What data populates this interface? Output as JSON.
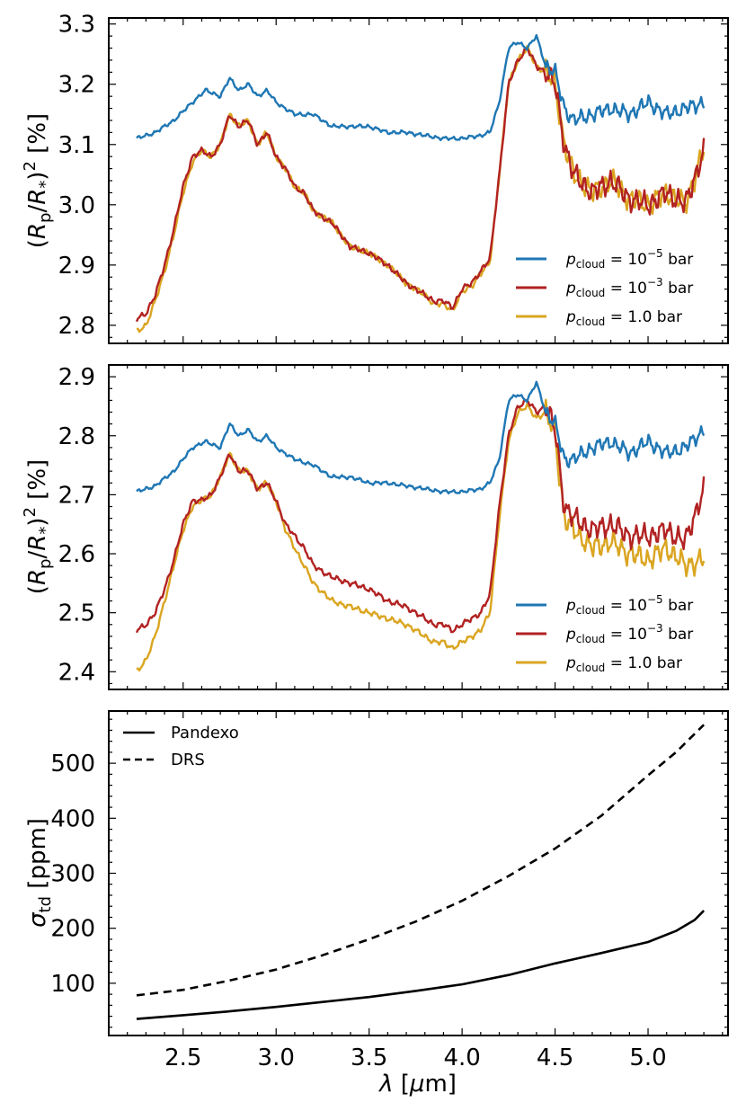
{
  "colors": {
    "blue": "#1f77b4",
    "red": "#b22222",
    "gold": "#daa520",
    "black": "#000000"
  },
  "chart_data": [
    {
      "type": "line",
      "panel": "top",
      "ylabel": "(Rp/R*)² [%]",
      "ylim": [
        2.77,
        3.31
      ],
      "yticks": [
        "2.8",
        "2.9",
        "3.0",
        "3.1",
        "3.2",
        "3.3"
      ],
      "xlim": [
        2.1,
        5.43
      ],
      "legend_position": "lower right",
      "legend": [
        {
          "prefix": "p",
          "sub": "cloud",
          "eq": " = 10",
          "sup": "−5",
          "unit": " bar",
          "color": "#1f77b4"
        },
        {
          "prefix": "p",
          "sub": "cloud",
          "eq": " = 10",
          "sup": "−3",
          "unit": " bar",
          "color": "#b22222"
        },
        {
          "prefix": "p",
          "sub": "cloud",
          "eq": " = 1.0 bar",
          "sup": "",
          "unit": "",
          "color": "#daa520"
        }
      ],
      "series": [
        {
          "name": "p_cloud = 1e-5 bar",
          "color": "#1f77b4",
          "x": [
            2.25,
            2.35,
            2.45,
            2.55,
            2.62,
            2.7,
            2.75,
            2.8,
            2.85,
            2.9,
            2.95,
            3.0,
            3.1,
            3.2,
            3.3,
            3.4,
            3.5,
            3.6,
            3.7,
            3.8,
            3.9,
            4.0,
            4.1,
            4.15,
            4.2,
            4.25,
            4.3,
            4.35,
            4.4,
            4.45,
            4.5,
            4.55,
            4.6,
            4.7,
            4.8,
            4.9,
            5.0,
            5.1,
            5.2,
            5.3
          ],
          "y": [
            3.11,
            3.12,
            3.14,
            3.17,
            3.19,
            3.18,
            3.21,
            3.19,
            3.2,
            3.18,
            3.19,
            3.17,
            3.15,
            3.15,
            3.13,
            3.13,
            3.13,
            3.12,
            3.12,
            3.115,
            3.11,
            3.11,
            3.115,
            3.12,
            3.17,
            3.26,
            3.27,
            3.26,
            3.28,
            3.23,
            3.22,
            3.16,
            3.14,
            3.15,
            3.16,
            3.15,
            3.17,
            3.15,
            3.16,
            3.17
          ]
        },
        {
          "name": "p_cloud = 1e-3 bar",
          "color": "#b22222",
          "x": [
            2.25,
            2.3,
            2.35,
            2.4,
            2.45,
            2.5,
            2.55,
            2.6,
            2.65,
            2.7,
            2.75,
            2.8,
            2.85,
            2.9,
            2.95,
            3.0,
            3.05,
            3.1,
            3.15,
            3.2,
            3.3,
            3.4,
            3.5,
            3.6,
            3.7,
            3.8,
            3.85,
            3.9,
            3.95,
            4.0,
            4.05,
            4.1,
            4.15,
            4.2,
            4.25,
            4.3,
            4.35,
            4.4,
            4.45,
            4.5,
            4.55,
            4.6,
            4.7,
            4.8,
            4.9,
            5.0,
            5.1,
            5.2,
            5.3
          ],
          "y": [
            2.81,
            2.82,
            2.85,
            2.9,
            2.96,
            3.03,
            3.08,
            3.09,
            3.08,
            3.1,
            3.15,
            3.13,
            3.14,
            3.1,
            3.12,
            3.08,
            3.06,
            3.03,
            3.02,
            2.99,
            2.97,
            2.93,
            2.92,
            2.9,
            2.87,
            2.85,
            2.84,
            2.84,
            2.83,
            2.86,
            2.87,
            2.89,
            2.91,
            3.05,
            3.2,
            3.24,
            3.26,
            3.23,
            3.22,
            3.2,
            3.1,
            3.05,
            3.02,
            3.04,
            3.01,
            3.0,
            3.02,
            3.0,
            3.09
          ]
        },
        {
          "name": "p_cloud = 1.0 bar",
          "color": "#daa520",
          "x": [
            2.25,
            2.3,
            2.35,
            2.4,
            2.45,
            2.5,
            2.55,
            2.6,
            2.65,
            2.7,
            2.75,
            2.8,
            2.85,
            2.9,
            2.95,
            3.0,
            3.05,
            3.1,
            3.15,
            3.2,
            3.3,
            3.4,
            3.5,
            3.6,
            3.7,
            3.8,
            3.85,
            3.9,
            3.95,
            4.0,
            4.05,
            4.1,
            4.15,
            4.2,
            4.25,
            4.3,
            4.35,
            4.4,
            4.45,
            4.5,
            4.55,
            4.6,
            4.7,
            4.8,
            4.9,
            5.0,
            5.1,
            5.2,
            5.3
          ],
          "y": [
            2.79,
            2.8,
            2.84,
            2.89,
            2.95,
            3.02,
            3.07,
            3.09,
            3.08,
            3.1,
            3.15,
            3.13,
            3.14,
            3.1,
            3.12,
            3.08,
            3.06,
            3.03,
            3.02,
            2.99,
            2.97,
            2.93,
            2.92,
            2.9,
            2.87,
            2.85,
            2.835,
            2.835,
            2.825,
            2.855,
            2.865,
            2.885,
            2.905,
            3.05,
            3.2,
            3.24,
            3.26,
            3.23,
            3.22,
            3.2,
            3.1,
            3.05,
            3.02,
            3.04,
            3.01,
            3.0,
            3.02,
            3.0,
            3.09
          ]
        }
      ]
    },
    {
      "type": "line",
      "panel": "middle",
      "ylabel": "(Rp/R*)² [%]",
      "ylim": [
        2.37,
        2.92
      ],
      "yticks": [
        "2.4",
        "2.5",
        "2.6",
        "2.7",
        "2.8",
        "2.9"
      ],
      "xlim": [
        2.1,
        5.43
      ],
      "legend_position": "lower right",
      "legend": [
        {
          "prefix": "p",
          "sub": "cloud",
          "eq": " = 10",
          "sup": "−5",
          "unit": " bar",
          "color": "#1f77b4"
        },
        {
          "prefix": "p",
          "sub": "cloud",
          "eq": " = 10",
          "sup": "−3",
          "unit": " bar",
          "color": "#b22222"
        },
        {
          "prefix": "p",
          "sub": "cloud",
          "eq": " = 1.0 bar",
          "sup": "",
          "unit": "",
          "color": "#daa520"
        }
      ],
      "series": [
        {
          "name": "p_cloud = 1e-5 bar",
          "color": "#1f77b4",
          "x": [
            2.25,
            2.35,
            2.45,
            2.55,
            2.62,
            2.7,
            2.75,
            2.8,
            2.85,
            2.9,
            2.95,
            3.0,
            3.1,
            3.2,
            3.3,
            3.4,
            3.5,
            3.6,
            3.7,
            3.8,
            3.9,
            4.0,
            4.1,
            4.15,
            4.2,
            4.25,
            4.3,
            4.35,
            4.4,
            4.45,
            4.5,
            4.55,
            4.6,
            4.7,
            4.8,
            4.9,
            5.0,
            5.1,
            5.2,
            5.3
          ],
          "y": [
            2.705,
            2.715,
            2.74,
            2.78,
            2.79,
            2.78,
            2.82,
            2.8,
            2.81,
            2.79,
            2.8,
            2.78,
            2.76,
            2.75,
            2.73,
            2.73,
            2.72,
            2.72,
            2.715,
            2.71,
            2.705,
            2.705,
            2.71,
            2.72,
            2.76,
            2.86,
            2.87,
            2.86,
            2.89,
            2.84,
            2.82,
            2.76,
            2.76,
            2.78,
            2.79,
            2.77,
            2.79,
            2.77,
            2.78,
            2.81
          ]
        },
        {
          "name": "p_cloud = 1e-3 bar",
          "color": "#b22222",
          "x": [
            2.25,
            2.3,
            2.35,
            2.4,
            2.45,
            2.5,
            2.55,
            2.6,
            2.65,
            2.7,
            2.75,
            2.8,
            2.85,
            2.9,
            2.95,
            3.0,
            3.05,
            3.1,
            3.15,
            3.2,
            3.3,
            3.4,
            3.5,
            3.6,
            3.7,
            3.8,
            3.85,
            3.9,
            3.95,
            4.0,
            4.05,
            4.1,
            4.15,
            4.2,
            4.25,
            4.3,
            4.35,
            4.4,
            4.45,
            4.5,
            4.55,
            4.6,
            4.7,
            4.8,
            4.9,
            5.0,
            5.1,
            5.2,
            5.3
          ],
          "y": [
            2.47,
            2.48,
            2.5,
            2.54,
            2.59,
            2.65,
            2.69,
            2.69,
            2.7,
            2.73,
            2.77,
            2.74,
            2.74,
            2.71,
            2.72,
            2.69,
            2.65,
            2.63,
            2.61,
            2.58,
            2.56,
            2.55,
            2.54,
            2.52,
            2.51,
            2.49,
            2.48,
            2.48,
            2.47,
            2.48,
            2.49,
            2.5,
            2.53,
            2.68,
            2.8,
            2.85,
            2.86,
            2.84,
            2.85,
            2.81,
            2.68,
            2.66,
            2.64,
            2.65,
            2.63,
            2.63,
            2.64,
            2.62,
            2.71
          ]
        },
        {
          "name": "p_cloud = 1.0 bar",
          "color": "#daa520",
          "x": [
            2.25,
            2.3,
            2.35,
            2.4,
            2.45,
            2.5,
            2.55,
            2.6,
            2.65,
            2.7,
            2.75,
            2.8,
            2.85,
            2.9,
            2.95,
            3.0,
            3.05,
            3.1,
            3.15,
            3.2,
            3.3,
            3.4,
            3.5,
            3.6,
            3.7,
            3.8,
            3.85,
            3.9,
            3.95,
            4.0,
            4.05,
            4.1,
            4.15,
            4.2,
            4.25,
            4.3,
            4.35,
            4.4,
            4.45,
            4.5,
            4.55,
            4.6,
            4.7,
            4.8,
            4.9,
            5.0,
            5.1,
            5.2,
            5.3
          ],
          "y": [
            2.4,
            2.42,
            2.46,
            2.52,
            2.58,
            2.64,
            2.68,
            2.69,
            2.7,
            2.73,
            2.77,
            2.74,
            2.74,
            2.71,
            2.72,
            2.69,
            2.64,
            2.61,
            2.58,
            2.55,
            2.52,
            2.51,
            2.5,
            2.49,
            2.48,
            2.46,
            2.45,
            2.45,
            2.44,
            2.45,
            2.46,
            2.47,
            2.5,
            2.66,
            2.79,
            2.84,
            2.85,
            2.83,
            2.84,
            2.8,
            2.66,
            2.64,
            2.61,
            2.62,
            2.6,
            2.59,
            2.61,
            2.58,
            2.59
          ]
        }
      ]
    },
    {
      "type": "line",
      "panel": "bottom",
      "ylabel": "σtd [ppm]",
      "ylim": [
        5,
        595
      ],
      "yticks": [
        "100",
        "200",
        "300",
        "400",
        "500"
      ],
      "xlim": [
        2.1,
        5.43
      ],
      "xticks": [
        "2.5",
        "3.0",
        "3.5",
        "4.0",
        "4.5",
        "5.0"
      ],
      "xlabel": "λ [μm]",
      "legend_position": "upper left",
      "legend": [
        {
          "name": "Pandexo",
          "style": "solid"
        },
        {
          "name": "DRS",
          "style": "dashed"
        }
      ],
      "series": [
        {
          "name": "Pandexo",
          "style": "solid",
          "color": "#000000",
          "x": [
            2.25,
            2.5,
            2.75,
            3.0,
            3.25,
            3.5,
            3.75,
            4.0,
            4.25,
            4.5,
            4.75,
            5.0,
            5.15,
            5.25,
            5.3
          ],
          "y": [
            35,
            42,
            49,
            57,
            66,
            75,
            86,
            98,
            115,
            136,
            155,
            175,
            195,
            215,
            232
          ]
        },
        {
          "name": "DRS",
          "style": "dashed",
          "color": "#000000",
          "x": [
            2.25,
            2.5,
            2.75,
            3.0,
            3.25,
            3.5,
            3.75,
            4.0,
            4.25,
            4.5,
            4.75,
            5.0,
            5.15,
            5.3
          ],
          "y": [
            78,
            88,
            105,
            125,
            151,
            180,
            212,
            250,
            295,
            345,
            405,
            478,
            520,
            570
          ]
        }
      ]
    }
  ]
}
